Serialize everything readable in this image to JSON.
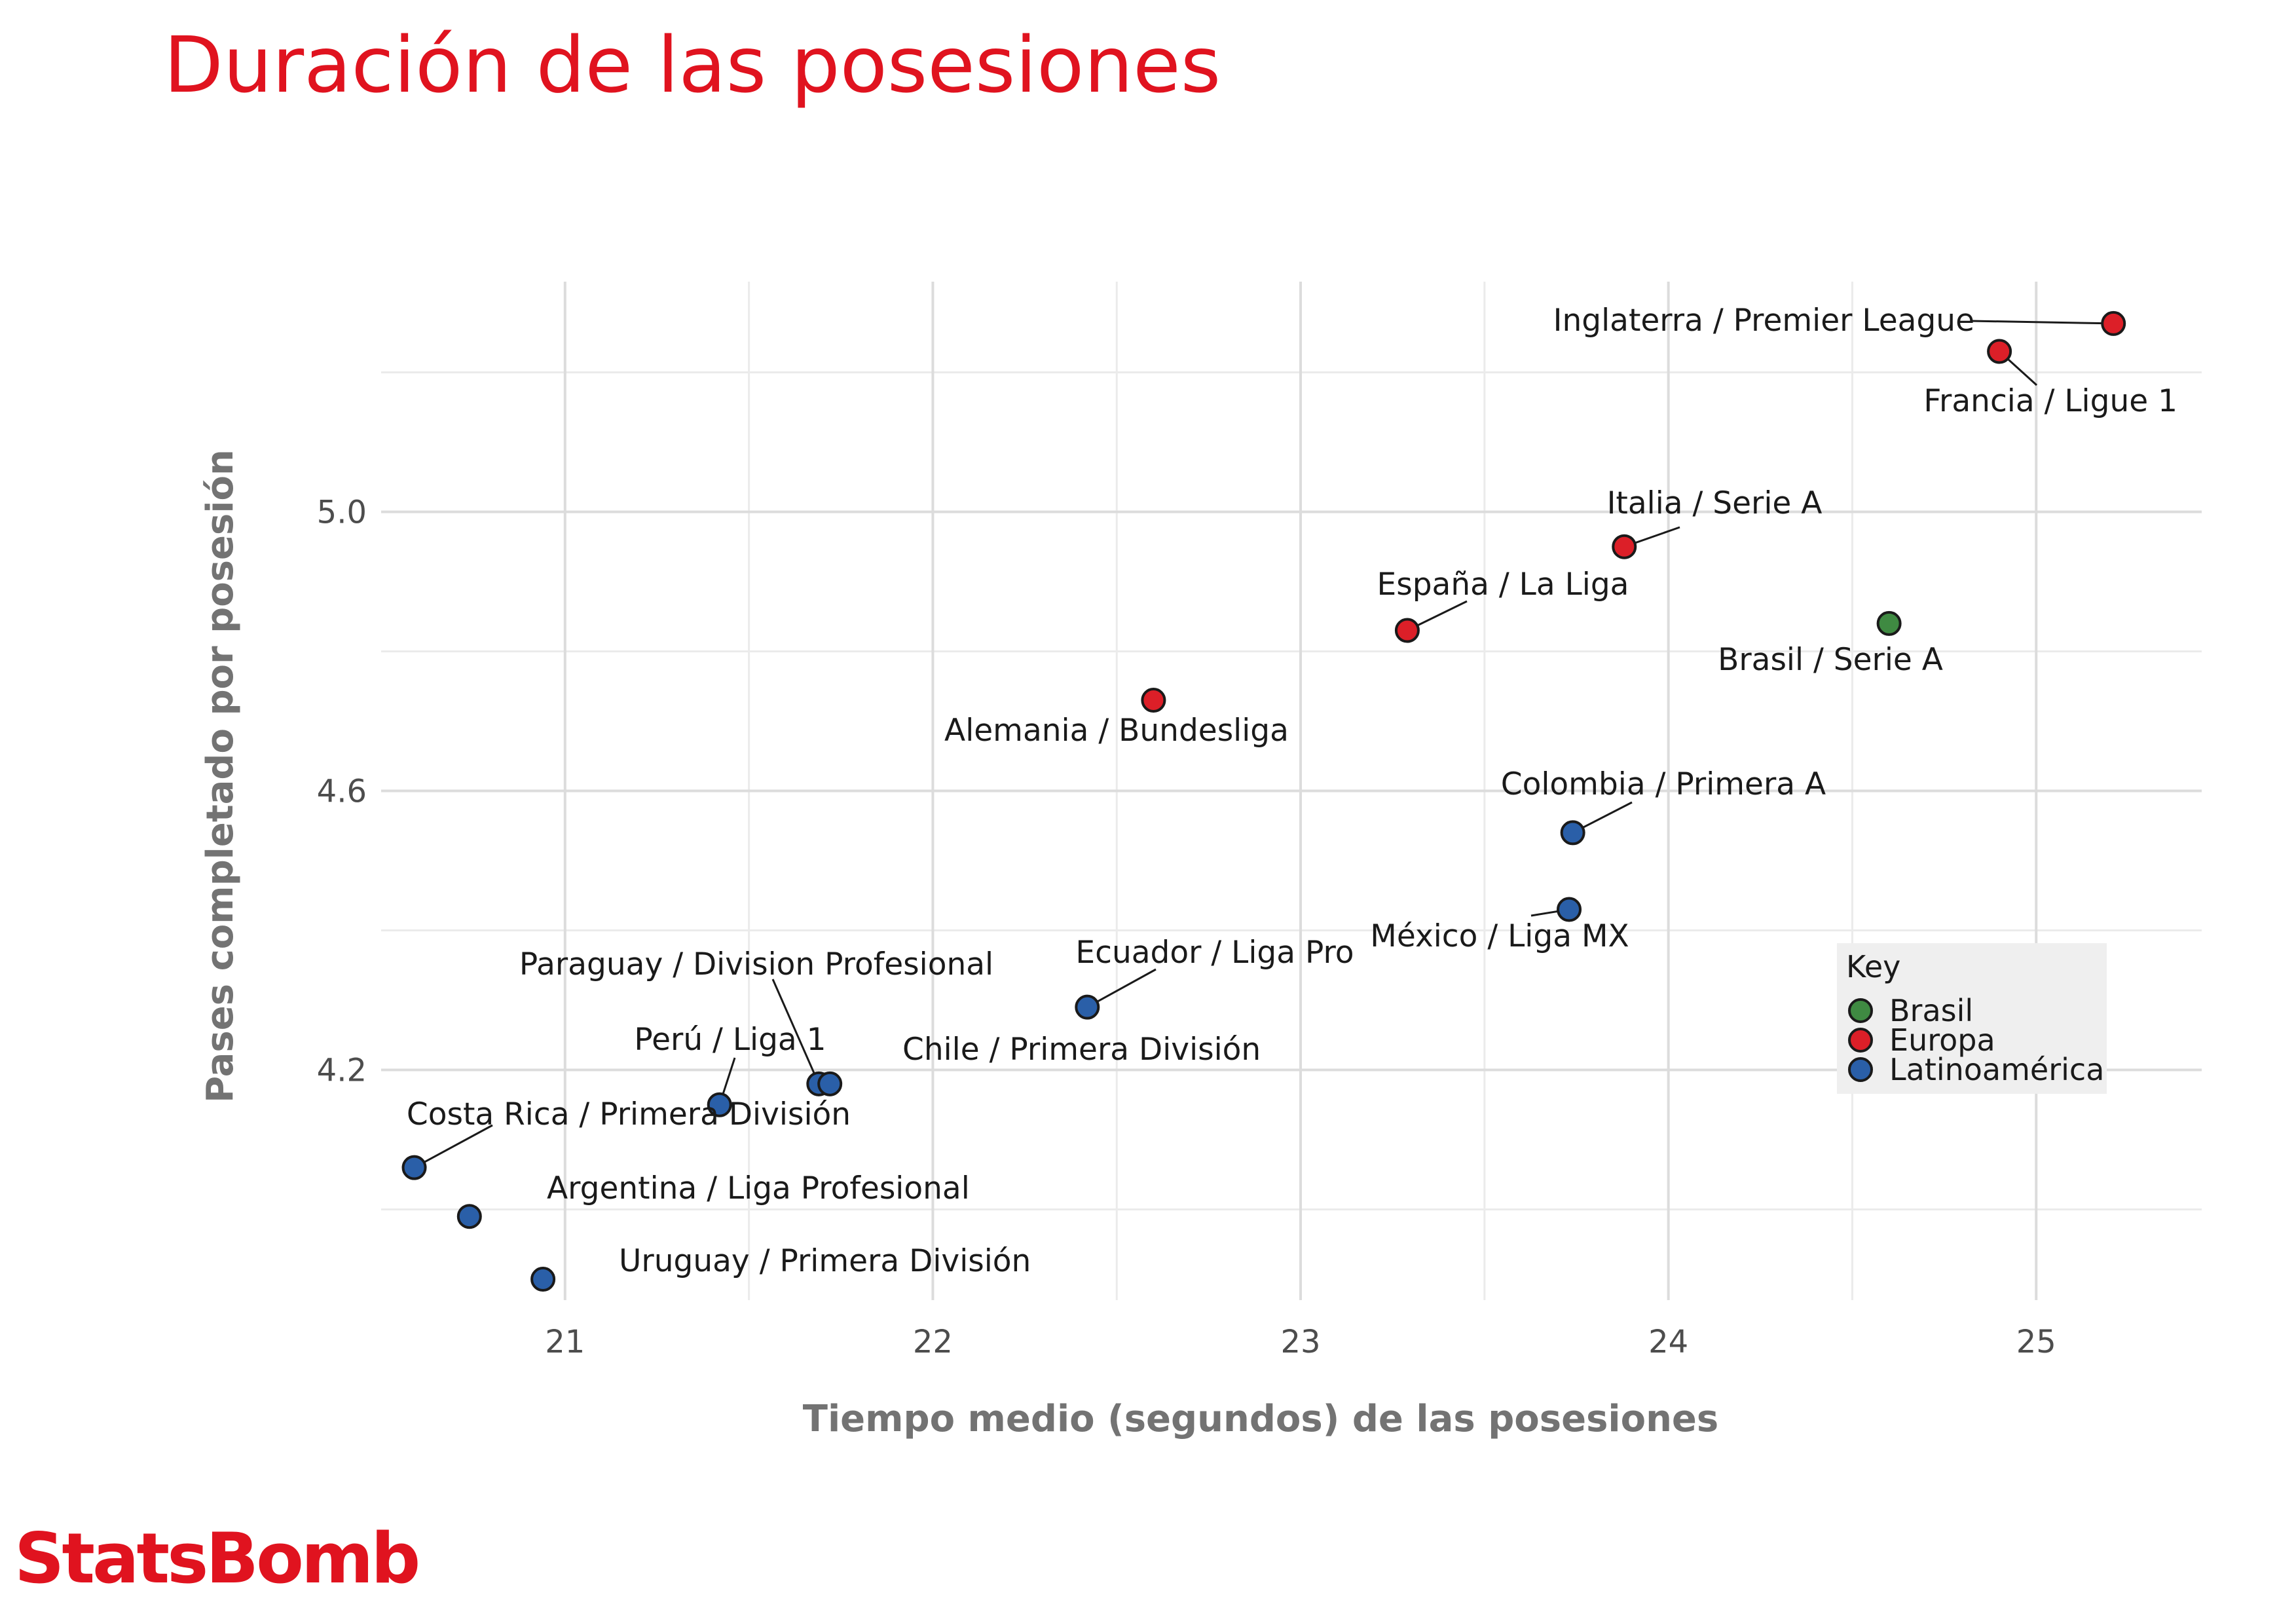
{
  "header": {
    "title": "Duración de las posesiones"
  },
  "brand": {
    "logo_text": "StatsBomb",
    "color": "#e0131f"
  },
  "chart_data": {
    "type": "scatter",
    "title": "Duración de las posesiones",
    "xlabel": "Tiempo medio (segundos) de las posesiones",
    "ylabel": "Pases completado por posesión",
    "xlim": [
      20.5,
      25.45
    ],
    "ylim": [
      3.87,
      5.33
    ],
    "xticks": [
      21,
      22,
      23,
      24,
      25
    ],
    "xtick_labels": [
      "21",
      "22",
      "23",
      "24",
      "25"
    ],
    "yticks": [
      4.2,
      4.6,
      5.0
    ],
    "ytick_labels": [
      "4.2",
      "4.6",
      "5.0"
    ],
    "grid": true,
    "legend": {
      "title": "Key",
      "position": "right",
      "items": [
        {
          "name": "Brasil",
          "color": "#3f8a42"
        },
        {
          "name": "Europa",
          "color": "#dc1f28"
        },
        {
          "name": "Latinoamérica",
          "color": "#2a5fa8"
        }
      ]
    },
    "points": [
      {
        "label": "Inglaterra / Premier League",
        "group": "Europa",
        "x": 25.21,
        "y": 5.27
      },
      {
        "label": "Francia / Ligue 1",
        "group": "Europa",
        "x": 24.9,
        "y": 5.23
      },
      {
        "label": "Italia / Serie A",
        "group": "Europa",
        "x": 23.88,
        "y": 4.95
      },
      {
        "label": "España / La Liga",
        "group": "Europa",
        "x": 23.29,
        "y": 4.83
      },
      {
        "label": "Alemania / Bundesliga",
        "group": "Europa",
        "x": 22.6,
        "y": 4.73
      },
      {
        "label": "Brasil / Serie A",
        "group": "Brasil",
        "x": 24.6,
        "y": 4.84
      },
      {
        "label": "Colombia / Primera A",
        "group": "Latinoamérica",
        "x": 23.74,
        "y": 4.54
      },
      {
        "label": "México / Liga MX",
        "group": "Latinoamérica",
        "x": 23.73,
        "y": 4.43
      },
      {
        "label": "Ecuador / Liga Pro",
        "group": "Latinoamérica",
        "x": 22.42,
        "y": 4.29
      },
      {
        "label": "Paraguay / Division Profesional",
        "group": "Latinoamérica",
        "x": 21.69,
        "y": 4.18
      },
      {
        "label": "Chile / Primera División",
        "group": "Latinoamérica",
        "x": 21.72,
        "y": 4.18
      },
      {
        "label": "Perú / Liga 1",
        "group": "Latinoamérica",
        "x": 21.42,
        "y": 4.15
      },
      {
        "label": "Costa Rica / Primera División",
        "group": "Latinoamérica",
        "x": 20.59,
        "y": 4.06
      },
      {
        "label": "Argentina / Liga Profesional",
        "group": "Latinoamérica",
        "x": 20.74,
        "y": 3.99
      },
      {
        "label": "Uruguay / Primera División",
        "group": "Latinoamérica",
        "x": 20.94,
        "y": 3.9
      }
    ]
  }
}
